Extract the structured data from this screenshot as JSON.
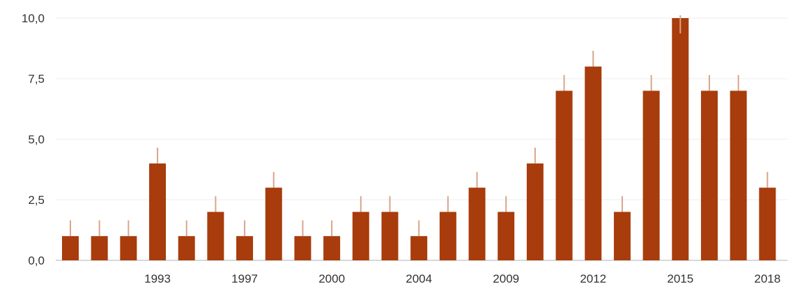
{
  "chart_data": {
    "type": "bar",
    "title": "",
    "xlabel": "",
    "ylabel": "",
    "ylim": [
      0,
      10
    ],
    "y_ticks": [
      "0,0",
      "2,5",
      "5,0",
      "7,5",
      "10,0"
    ],
    "y_tick_values": [
      0,
      2.5,
      5,
      7.5,
      10
    ],
    "grid": "horizontal",
    "categories": [
      "",
      "",
      "",
      "1993",
      "",
      "",
      "1997",
      "",
      "",
      "2000",
      "",
      "",
      "2004",
      "",
      "",
      "2009",
      "",
      "",
      "2012",
      "",
      "",
      "2015",
      "",
      "",
      "2018"
    ],
    "series": [
      {
        "values": [
          1,
          1,
          1,
          4,
          1,
          2,
          1,
          3,
          1,
          1,
          2,
          2,
          1,
          2,
          3,
          2,
          4,
          7,
          8,
          2,
          7,
          10,
          7,
          7,
          3
        ],
        "error_plus": 0.65
      }
    ],
    "colors": {
      "bar": "#a83c0c",
      "error_bar": "#d9a58c",
      "grid": "#eeeeee",
      "axis": "#cccccc"
    }
  }
}
